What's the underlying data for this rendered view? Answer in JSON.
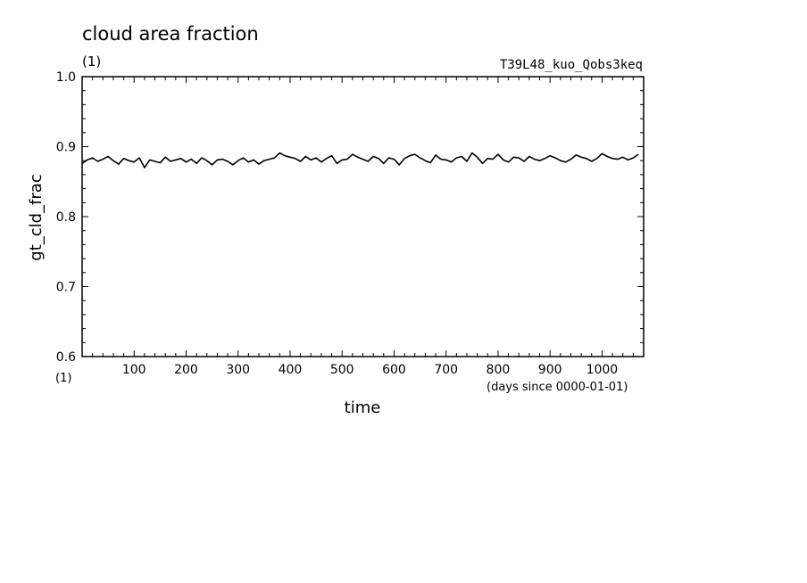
{
  "chart_data": {
    "type": "line",
    "title": "cloud area fraction",
    "title_units": "(1)",
    "run_label": "T39L48_kuo_Qobs3keq",
    "xlabel": "time",
    "xunits": "(days since 0000-01-01)",
    "ylabel": "gt_cld_frac",
    "yunits": "(1)",
    "xlim": [
      0,
      1080
    ],
    "ylim": [
      0.6,
      1.0
    ],
    "x_ticks": [
      100,
      200,
      300,
      400,
      500,
      600,
      700,
      800,
      900,
      1000
    ],
    "y_ticks": [
      "0.6",
      "0.7",
      "0.8",
      "0.9",
      "1.0"
    ],
    "grid": false,
    "series": [
      {
        "x_start": 0,
        "x_step": 10,
        "values": [
          0.876,
          0.881,
          0.884,
          0.879,
          0.882,
          0.886,
          0.88,
          0.875,
          0.883,
          0.88,
          0.878,
          0.884,
          0.87,
          0.881,
          0.879,
          0.877,
          0.885,
          0.879,
          0.881,
          0.883,
          0.878,
          0.882,
          0.876,
          0.884,
          0.88,
          0.874,
          0.881,
          0.882,
          0.879,
          0.874,
          0.88,
          0.884,
          0.878,
          0.881,
          0.875,
          0.88,
          0.882,
          0.884,
          0.891,
          0.887,
          0.885,
          0.883,
          0.879,
          0.886,
          0.881,
          0.884,
          0.878,
          0.883,
          0.887,
          0.876,
          0.881,
          0.882,
          0.889,
          0.885,
          0.882,
          0.879,
          0.886,
          0.883,
          0.876,
          0.884,
          0.882,
          0.874,
          0.883,
          0.887,
          0.889,
          0.884,
          0.88,
          0.877,
          0.888,
          0.882,
          0.881,
          0.878,
          0.884,
          0.886,
          0.879,
          0.891,
          0.885,
          0.876,
          0.883,
          0.882,
          0.889,
          0.881,
          0.878,
          0.885,
          0.884,
          0.879,
          0.886,
          0.882,
          0.88,
          0.883,
          0.887,
          0.884,
          0.88,
          0.878,
          0.882,
          0.888,
          0.885,
          0.883,
          0.879,
          0.883,
          0.89,
          0.886,
          0.883,
          0.882,
          0.885,
          0.881,
          0.884,
          0.889
        ]
      }
    ]
  }
}
